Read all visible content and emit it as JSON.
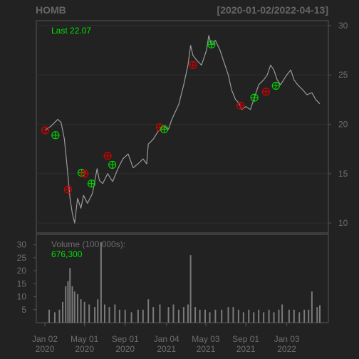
{
  "chart_data": {
    "type": "line",
    "title": "HOMB",
    "date_range": "[2020-01-02/2022-04-13]",
    "last_label": "Last 22.07",
    "price_axis": {
      "ylim": [
        9,
        30.5
      ],
      "ticks": [
        10,
        15,
        20,
        25,
        30
      ],
      "side": "right"
    },
    "volume_axis": {
      "label": "Volume (100,000s):",
      "last_value": "676,300",
      "ylim": [
        0,
        34
      ],
      "ticks": [
        5,
        10,
        15,
        20,
        25,
        30
      ],
      "side": "left"
    },
    "x_ticks": [
      {
        "date": "2020-01-02",
        "line1": "Jan 02",
        "line2": "2020"
      },
      {
        "date": "2020-05-01",
        "line1": "May 01",
        "line2": "2020"
      },
      {
        "date": "2020-09-01",
        "line1": "Sep 01",
        "line2": "2020"
      },
      {
        "date": "2021-01-04",
        "line1": "Jan 04",
        "line2": "2021"
      },
      {
        "date": "2021-05-03",
        "line1": "May 03",
        "line2": "2021"
      },
      {
        "date": "2021-09-01",
        "line1": "Sep 01",
        "line2": "2021"
      },
      {
        "date": "2022-01-03",
        "line1": "Jan 03",
        "line2": "2022"
      }
    ],
    "x_range": [
      "2020-01-02",
      "2022-04-13"
    ],
    "price_series": [
      [
        "2020-01-02",
        19.4
      ],
      [
        "2020-01-20",
        19.8
      ],
      [
        "2020-02-10",
        20.5
      ],
      [
        "2020-02-20",
        20.2
      ],
      [
        "2020-03-01",
        18.5
      ],
      [
        "2020-03-10",
        15.5
      ],
      [
        "2020-03-18",
        12.5
      ],
      [
        "2020-03-25",
        11.0
      ],
      [
        "2020-04-01",
        10.0
      ],
      [
        "2020-04-10",
        12.5
      ],
      [
        "2020-04-20",
        11.5
      ],
      [
        "2020-04-28",
        12.8
      ],
      [
        "2020-05-10",
        12.0
      ],
      [
        "2020-05-25",
        13.0
      ],
      [
        "2020-06-08",
        15.5
      ],
      [
        "2020-06-15",
        14.3
      ],
      [
        "2020-06-25",
        14.0
      ],
      [
        "2020-07-10",
        15.0
      ],
      [
        "2020-07-25",
        14.2
      ],
      [
        "2020-08-10",
        15.5
      ],
      [
        "2020-08-25",
        16.5
      ],
      [
        "2020-09-10",
        17.0
      ],
      [
        "2020-09-25",
        15.6
      ],
      [
        "2020-10-10",
        16.0
      ],
      [
        "2020-10-25",
        16.5
      ],
      [
        "2020-11-05",
        16.0
      ],
      [
        "2020-11-10",
        18.0
      ],
      [
        "2020-11-25",
        18.5
      ],
      [
        "2020-12-10",
        19.3
      ],
      [
        "2020-12-25",
        19.8
      ],
      [
        "2021-01-10",
        19.5
      ],
      [
        "2021-01-20",
        20.5
      ],
      [
        "2021-02-10",
        22.0
      ],
      [
        "2021-02-25",
        24.0
      ],
      [
        "2021-03-10",
        26.0
      ],
      [
        "2021-03-18",
        28.0
      ],
      [
        "2021-03-25",
        27.0
      ],
      [
        "2021-04-05",
        26.5
      ],
      [
        "2021-04-20",
        26.0
      ],
      [
        "2021-05-05",
        27.5
      ],
      [
        "2021-05-12",
        29.0
      ],
      [
        "2021-05-20",
        28.0
      ],
      [
        "2021-06-01",
        28.5
      ],
      [
        "2021-06-15",
        27.5
      ],
      [
        "2021-06-25",
        26.5
      ],
      [
        "2021-07-10",
        25.0
      ],
      [
        "2021-07-20",
        23.5
      ],
      [
        "2021-08-01",
        22.5
      ],
      [
        "2021-08-10",
        22.2
      ],
      [
        "2021-08-20",
        21.5
      ],
      [
        "2021-09-01",
        21.8
      ],
      [
        "2021-09-15",
        21.5
      ],
      [
        "2021-09-25",
        22.5
      ],
      [
        "2021-10-10",
        24.0
      ],
      [
        "2021-10-25",
        24.5
      ],
      [
        "2021-11-05",
        25.0
      ],
      [
        "2021-11-15",
        26.0
      ],
      [
        "2021-11-25",
        25.5
      ],
      [
        "2021-12-05",
        24.5
      ],
      [
        "2021-12-15",
        24.0
      ],
      [
        "2022-01-03",
        25.0
      ],
      [
        "2022-01-15",
        25.5
      ],
      [
        "2022-01-25",
        24.5
      ],
      [
        "2022-02-05",
        24.0
      ],
      [
        "2022-02-20",
        23.5
      ],
      [
        "2022-03-05",
        23.0
      ],
      [
        "2022-03-20",
        23.2
      ],
      [
        "2022-04-01",
        22.5
      ],
      [
        "2022-04-13",
        22.07
      ]
    ],
    "signals": [
      {
        "date": "2020-01-03",
        "price": 19.4,
        "type": "sell"
      },
      {
        "date": "2020-02-03",
        "price": 18.9,
        "type": "buy"
      },
      {
        "date": "2020-03-12",
        "price": 13.4,
        "type": "sell"
      },
      {
        "date": "2020-04-22",
        "price": 15.1,
        "type": "buy"
      },
      {
        "date": "2020-05-01",
        "price": 15.0,
        "type": "sell"
      },
      {
        "date": "2020-05-22",
        "price": 14.0,
        "type": "buy"
      },
      {
        "date": "2020-07-10",
        "price": 16.8,
        "type": "sell"
      },
      {
        "date": "2020-07-24",
        "price": 15.9,
        "type": "buy"
      },
      {
        "date": "2020-12-15",
        "price": 19.7,
        "type": "sell"
      },
      {
        "date": "2020-12-28",
        "price": 19.5,
        "type": "buy"
      },
      {
        "date": "2021-03-25",
        "price": 26.0,
        "type": "sell"
      },
      {
        "date": "2021-05-20",
        "price": 28.1,
        "type": "buy"
      },
      {
        "date": "2021-08-16",
        "price": 21.9,
        "type": "sell"
      },
      {
        "date": "2021-09-27",
        "price": 22.7,
        "type": "buy"
      },
      {
        "date": "2021-11-01",
        "price": 23.3,
        "type": "sell"
      },
      {
        "date": "2021-12-01",
        "price": 23.9,
        "type": "buy"
      }
    ],
    "volume_series": [
      [
        "2020-01-15",
        5
      ],
      [
        "2020-02-01",
        4
      ],
      [
        "2020-02-15",
        5
      ],
      [
        "2020-02-25",
        8
      ],
      [
        "2020-03-05",
        14
      ],
      [
        "2020-03-12",
        16
      ],
      [
        "2020-03-18",
        21
      ],
      [
        "2020-03-25",
        14
      ],
      [
        "2020-04-01",
        12
      ],
      [
        "2020-04-10",
        11
      ],
      [
        "2020-04-20",
        9
      ],
      [
        "2020-05-01",
        8
      ],
      [
        "2020-05-15",
        7
      ],
      [
        "2020-06-01",
        6
      ],
      [
        "2020-06-10",
        9
      ],
      [
        "2020-06-20",
        31
      ],
      [
        "2020-07-01",
        7
      ],
      [
        "2020-07-15",
        6
      ],
      [
        "2020-08-01",
        7
      ],
      [
        "2020-08-15",
        5
      ],
      [
        "2020-09-01",
        5
      ],
      [
        "2020-09-20",
        4
      ],
      [
        "2020-10-10",
        5
      ],
      [
        "2020-10-25",
        5
      ],
      [
        "2020-11-10",
        9
      ],
      [
        "2020-11-25",
        6
      ],
      [
        "2020-12-15",
        7
      ],
      [
        "2021-01-10",
        6
      ],
      [
        "2021-01-25",
        7
      ],
      [
        "2021-02-10",
        5
      ],
      [
        "2021-02-25",
        6
      ],
      [
        "2021-03-10",
        7
      ],
      [
        "2021-03-18",
        26
      ],
      [
        "2021-04-01",
        6
      ],
      [
        "2021-04-15",
        5
      ],
      [
        "2021-05-01",
        5
      ],
      [
        "2021-05-15",
        4
      ],
      [
        "2021-06-01",
        5
      ],
      [
        "2021-06-20",
        5
      ],
      [
        "2021-07-10",
        6
      ],
      [
        "2021-07-25",
        6
      ],
      [
        "2021-08-10",
        5
      ],
      [
        "2021-08-25",
        4
      ],
      [
        "2021-09-10",
        5
      ],
      [
        "2021-09-25",
        4
      ],
      [
        "2021-10-10",
        5
      ],
      [
        "2021-10-25",
        4
      ],
      [
        "2021-11-10",
        5
      ],
      [
        "2021-11-25",
        4
      ],
      [
        "2021-12-10",
        5
      ],
      [
        "2021-12-20",
        7
      ],
      [
        "2022-01-10",
        5
      ],
      [
        "2022-01-25",
        5
      ],
      [
        "2022-02-10",
        4
      ],
      [
        "2022-02-25",
        5
      ],
      [
        "2022-03-10",
        5
      ],
      [
        "2022-03-20",
        12
      ],
      [
        "2022-04-05",
        6
      ],
      [
        "2022-04-13",
        6.76
      ]
    ]
  },
  "colors": {
    "background": "#222222",
    "panel_border": "#555555",
    "grid": "#2f2f2f",
    "price_line": "#9a9a9a",
    "volume_bar": "#7a7a7a",
    "label_grey": "#6e6e6e",
    "title_grey": "#666666",
    "buy": "#00d000",
    "sell": "#d00000",
    "last_green": "#00e000"
  }
}
